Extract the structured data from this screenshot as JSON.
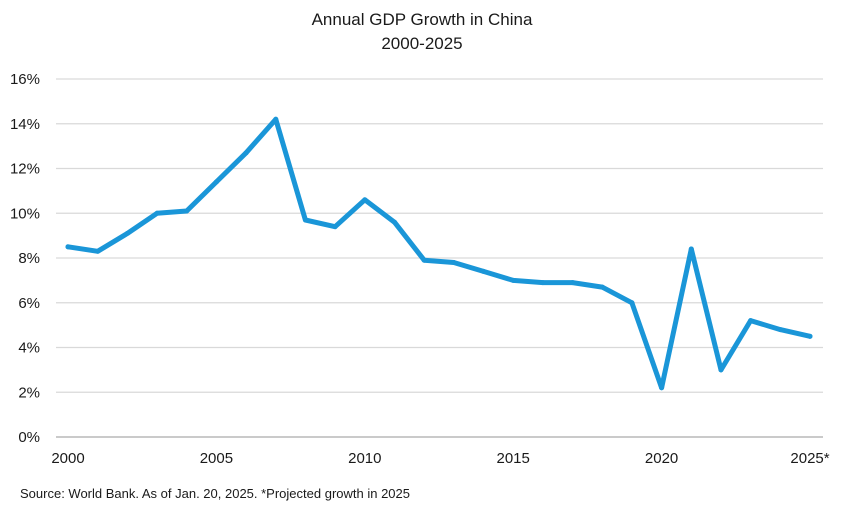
{
  "chart_data": {
    "type": "line",
    "title": "Annual GDP Growth in China",
    "subtitle": "2000-2025",
    "xlabel": "",
    "ylabel": "",
    "x": [
      2000,
      2001,
      2002,
      2003,
      2004,
      2005,
      2006,
      2007,
      2008,
      2009,
      2010,
      2011,
      2012,
      2013,
      2014,
      2015,
      2016,
      2017,
      2018,
      2019,
      2020,
      2021,
      2022,
      2023,
      2024,
      2025
    ],
    "series": [
      {
        "values": [
          8.5,
          8.3,
          9.1,
          10.0,
          10.1,
          11.4,
          12.7,
          14.2,
          9.7,
          9.4,
          10.6,
          9.6,
          7.9,
          7.8,
          7.4,
          7.0,
          6.9,
          6.9,
          6.7,
          6.0,
          2.2,
          8.4,
          3.0,
          5.2,
          4.8,
          4.5
        ],
        "color": "#1a96d8"
      }
    ],
    "xlim": [
      2000,
      2025
    ],
    "ylim": [
      0,
      16
    ],
    "x_ticks": [
      2000,
      2005,
      2010,
      2015,
      2020,
      2025
    ],
    "x_tick_labels": [
      "2000",
      "2005",
      "2010",
      "2015",
      "2020",
      "2025*"
    ],
    "y_ticks": [
      0,
      2,
      4,
      6,
      8,
      10,
      12,
      14,
      16
    ],
    "y_tick_labels": [
      "0%",
      "2%",
      "4%",
      "6%",
      "8%",
      "10%",
      "12%",
      "14%",
      "16%"
    ],
    "grid": "horizontal",
    "grid_color": "#d9d9d9",
    "axis_color": "#aaaaaa",
    "legend": "none",
    "source_note": "Source: World Bank. As of Jan. 20, 2025. *Projected growth in 2025"
  }
}
